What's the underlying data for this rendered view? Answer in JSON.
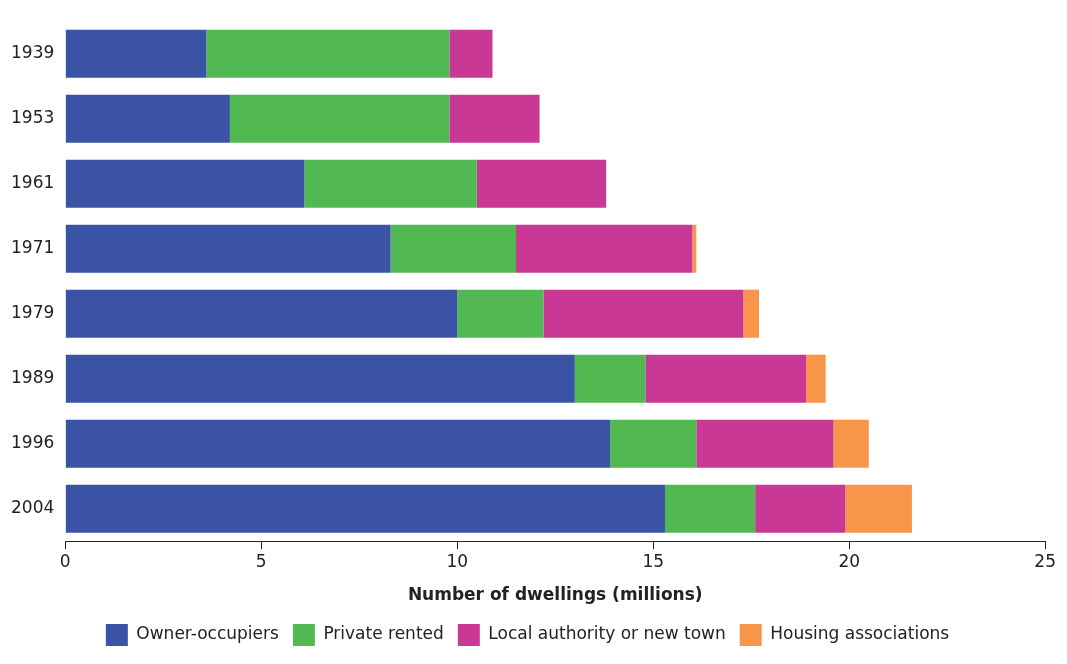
{
  "chart_data": {
    "type": "bar",
    "orientation": "horizontal",
    "stacked": true,
    "xlabel": "Number of dwellings (millions)",
    "categories": [
      "1939",
      "1953",
      "1961",
      "1971",
      "1979",
      "1989",
      "1996",
      "2004"
    ],
    "series": [
      {
        "name": "Owner-occupiers",
        "color": "#3a53a4",
        "values": [
          3.6,
          4.2,
          6.1,
          8.3,
          10.0,
          13.0,
          13.9,
          15.3
        ]
      },
      {
        "name": "Private rented",
        "color": "#52b952",
        "values": [
          6.2,
          5.6,
          4.4,
          3.2,
          2.2,
          1.8,
          2.2,
          2.3
        ]
      },
      {
        "name": "Local authority or new town",
        "color": "#c83894",
        "values": [
          1.1,
          2.3,
          3.3,
          4.5,
          5.1,
          4.1,
          3.5,
          2.3
        ]
      },
      {
        "name": "Housing associations",
        "color": "#f7954a",
        "values": [
          0,
          0,
          0,
          0.1,
          0.4,
          0.5,
          0.9,
          1.7
        ]
      }
    ],
    "xlim": [
      0,
      25
    ],
    "xticks": [
      0,
      5,
      10,
      15,
      20,
      25
    ],
    "grid": false,
    "legend": "bottom"
  }
}
